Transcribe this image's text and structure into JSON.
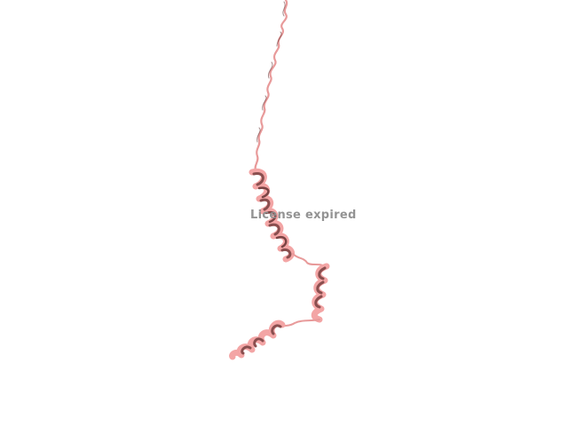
{
  "viewer": {
    "overlay_text": "License expired",
    "background_color": "#ffffff",
    "ribbon_color": "#f0a0a0",
    "ribbon_shadow_color": "#8a4f4f",
    "overlay_color": "#8e8e8e"
  }
}
